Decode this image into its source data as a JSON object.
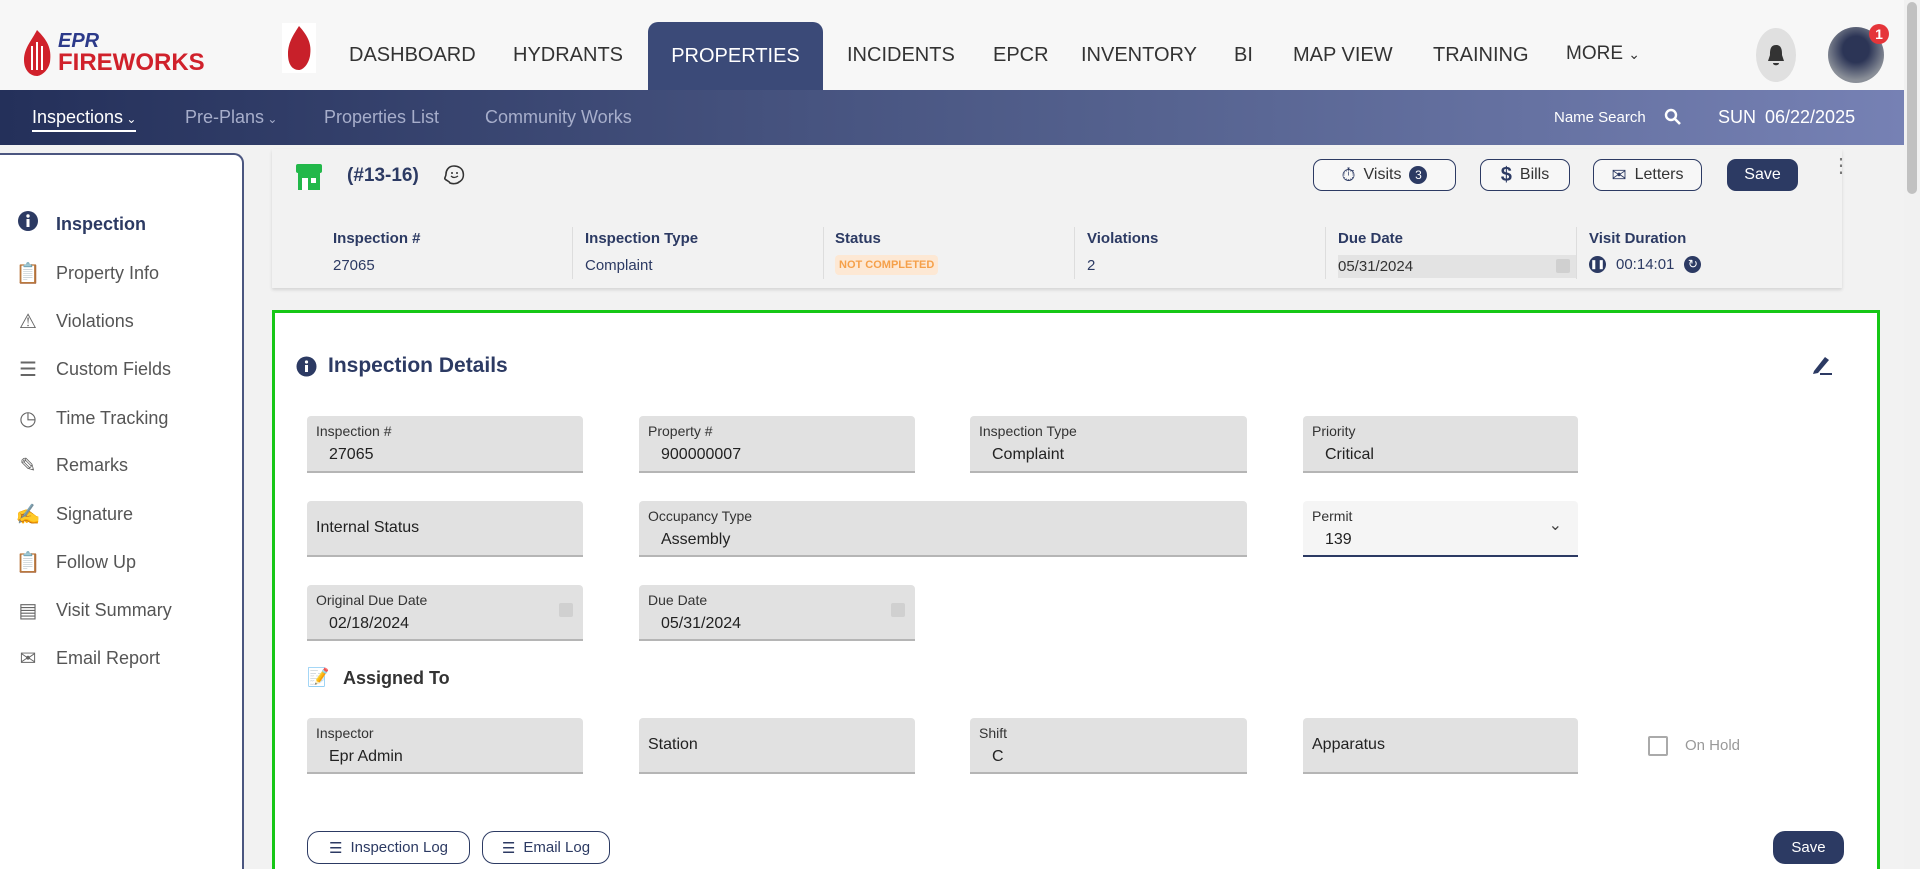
{
  "brand": {
    "logo_line1": "EPR",
    "logo_line2": "FIREWORKS",
    "accent": "#d0212b",
    "navy": "#2c3a63"
  },
  "topnav": {
    "items": [
      "DASHBOARD",
      "HYDRANTS",
      "PROPERTIES",
      "INCIDENTS",
      "EPCR",
      "INVENTORY",
      "BI",
      "MAP VIEW",
      "TRAINING"
    ],
    "active": "PROPERTIES",
    "more": "MORE",
    "notification_count": "1"
  },
  "subnav": {
    "items": [
      "Inspections",
      "Pre-Plans",
      "Properties List",
      "Community Works"
    ],
    "name_search": "Name Search",
    "day": "SUN",
    "date": "06/22/2025"
  },
  "sidebar": {
    "items": [
      {
        "label": "Inspection",
        "icon": "info-icon"
      },
      {
        "label": "Property Info",
        "icon": "clipboard-icon"
      },
      {
        "label": "Violations",
        "icon": "warning-icon"
      },
      {
        "label": "Custom Fields",
        "icon": "bars-icon"
      },
      {
        "label": "Time Tracking",
        "icon": "clock-icon"
      },
      {
        "label": "Remarks",
        "icon": "pen-icon"
      },
      {
        "label": "Signature",
        "icon": "signature-icon"
      },
      {
        "label": "Follow Up",
        "icon": "clipboard-plus-icon"
      },
      {
        "label": "Visit Summary",
        "icon": "list-icon"
      },
      {
        "label": "Email Report",
        "icon": "envelope-icon"
      }
    ]
  },
  "header": {
    "property_code": "(#13-16)",
    "visits_label": "Visits",
    "visits_count": "3",
    "bills_label": "Bills",
    "letters_label": "Letters",
    "save_label": "Save",
    "summary": {
      "inspection_no_label": "Inspection #",
      "inspection_no": "27065",
      "type_label": "Inspection Type",
      "type": "Complaint",
      "status_label": "Status",
      "status": "NOT COMPLETED",
      "violations_label": "Violations",
      "violations": "2",
      "due_label": "Due Date",
      "due": "05/31/2024",
      "duration_label": "Visit Duration",
      "duration": "00:14:01"
    }
  },
  "details": {
    "title": "Inspection Details",
    "inspection_no_label": "Inspection #",
    "inspection_no": "27065",
    "property_no_label": "Property #",
    "property_no": "900000007",
    "type_label": "Inspection Type",
    "type": "Complaint",
    "priority_label": "Priority",
    "priority": "Critical",
    "internal_status_label": "Internal Status",
    "occupancy_label": "Occupancy Type",
    "occupancy": "Assembly",
    "permit_label": "Permit",
    "permit": "139",
    "orig_due_label": "Original Due Date",
    "orig_due": "02/18/2024",
    "due_label": "Due Date",
    "due": "05/31/2024"
  },
  "assigned": {
    "title": "Assigned To",
    "inspector_label": "Inspector",
    "inspector": "Epr Admin",
    "station_label": "Station",
    "shift_label": "Shift",
    "shift": "C",
    "apparatus_label": "Apparatus",
    "on_hold_label": "On Hold",
    "on_hold": false
  },
  "footer": {
    "inspection_log": "Inspection Log",
    "email_log": "Email Log",
    "save": "Save"
  }
}
